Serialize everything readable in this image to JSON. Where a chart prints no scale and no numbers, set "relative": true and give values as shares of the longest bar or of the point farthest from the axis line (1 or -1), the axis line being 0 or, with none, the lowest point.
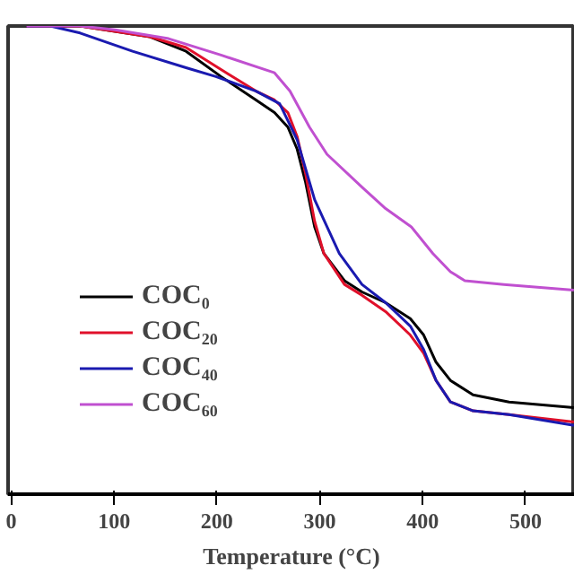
{
  "chart_data": {
    "type": "line",
    "xlabel": "Temperature (°C)",
    "relative": true,
    "xlim": [
      -3,
      548
    ],
    "xticks": [
      0,
      100,
      200,
      300,
      400,
      500
    ],
    "legend": "bottom left",
    "grid": false,
    "tick_labels": "x",
    "series": [
      {
        "name": "COC₀",
        "color": "#000000",
        "x": [
          15,
          67,
          135,
          170,
          204,
          238,
          256,
          269,
          278,
          286,
          295,
          304,
          324,
          341,
          364,
          388,
          401,
          413,
          427,
          449,
          484,
          547
        ],
        "values": [
          1.0,
          1.0,
          0.977,
          0.946,
          0.892,
          0.842,
          0.815,
          0.784,
          0.737,
          0.668,
          0.571,
          0.514,
          0.456,
          0.432,
          0.409,
          0.375,
          0.34,
          0.282,
          0.243,
          0.212,
          0.197,
          0.185
        ]
      },
      {
        "name": "COC₂₀",
        "color": "#e0102a",
        "x": [
          15,
          67,
          135,
          170,
          204,
          238,
          256,
          269,
          278,
          286,
          295,
          304,
          324,
          341,
          364,
          388,
          401,
          413,
          427,
          449,
          484,
          547
        ],
        "values": [
          1.0,
          1.0,
          0.977,
          0.954,
          0.907,
          0.861,
          0.842,
          0.815,
          0.764,
          0.687,
          0.583,
          0.514,
          0.448,
          0.425,
          0.39,
          0.34,
          0.301,
          0.243,
          0.197,
          0.178,
          0.17,
          0.154
        ]
      },
      {
        "name": "COC₄₀",
        "color": "#1a1ab0",
        "x": [
          15,
          38,
          67,
          118,
          170,
          199,
          238,
          261,
          278,
          295,
          319,
          341,
          364,
          388,
          401,
          413,
          427,
          449,
          484,
          547
        ],
        "values": [
          1.0,
          1.0,
          0.985,
          0.946,
          0.911,
          0.892,
          0.861,
          0.834,
          0.757,
          0.629,
          0.514,
          0.448,
          0.409,
          0.359,
          0.309,
          0.243,
          0.197,
          0.178,
          0.17,
          0.147
        ]
      },
      {
        "name": "COC₆₀",
        "color": "#c050d0",
        "x": [
          15,
          67,
          101,
          153,
          204,
          256,
          271,
          290,
          307,
          341,
          364,
          389,
          410,
          427,
          441,
          479,
          547
        ],
        "values": [
          1.0,
          1.0,
          0.992,
          0.973,
          0.938,
          0.9,
          0.861,
          0.784,
          0.726,
          0.656,
          0.61,
          0.571,
          0.514,
          0.475,
          0.456,
          0.448,
          0.436
        ]
      }
    ]
  }
}
